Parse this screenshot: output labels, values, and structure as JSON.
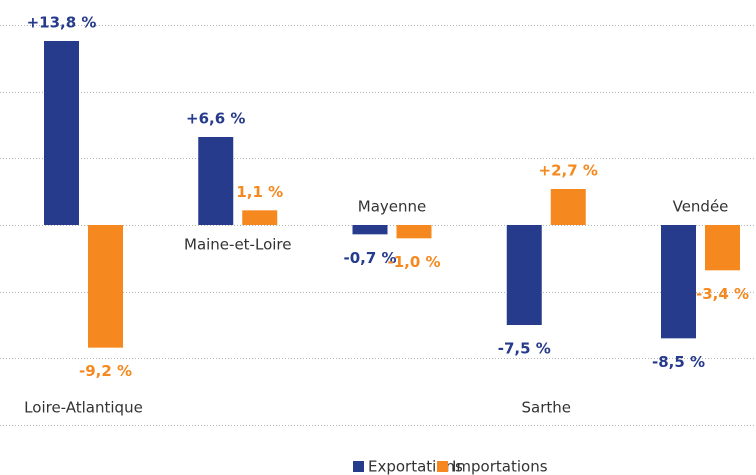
{
  "chart_data": {
    "type": "bar",
    "categories": [
      "Loire-Atlantique",
      "Maine-et-Loire",
      "Mayenne",
      "Sarthe",
      "Vendée"
    ],
    "series": [
      {
        "name": "Exportations",
        "color": "#263b8c",
        "values": [
          13.8,
          6.6,
          -0.7,
          -7.5,
          -8.5
        ],
        "value_labels": [
          "+13,8 %",
          "+6,6 %",
          "-0,7 %",
          "-7,5 %",
          "-8,5 %"
        ]
      },
      {
        "name": "Importations",
        "color": "#f5891f",
        "values": [
          -9.2,
          1.1,
          -1.0,
          2.7,
          -3.4
        ],
        "value_labels": [
          "-9,2 %",
          "1,1 %",
          "-1,0 %",
          "+2,7 %",
          "-3,4 %"
        ]
      }
    ],
    "ylim": [
      -15,
      15
    ],
    "yticks": [
      -15,
      -10,
      -5,
      0,
      5,
      10,
      15
    ],
    "grid": true,
    "legend": "bottom"
  }
}
